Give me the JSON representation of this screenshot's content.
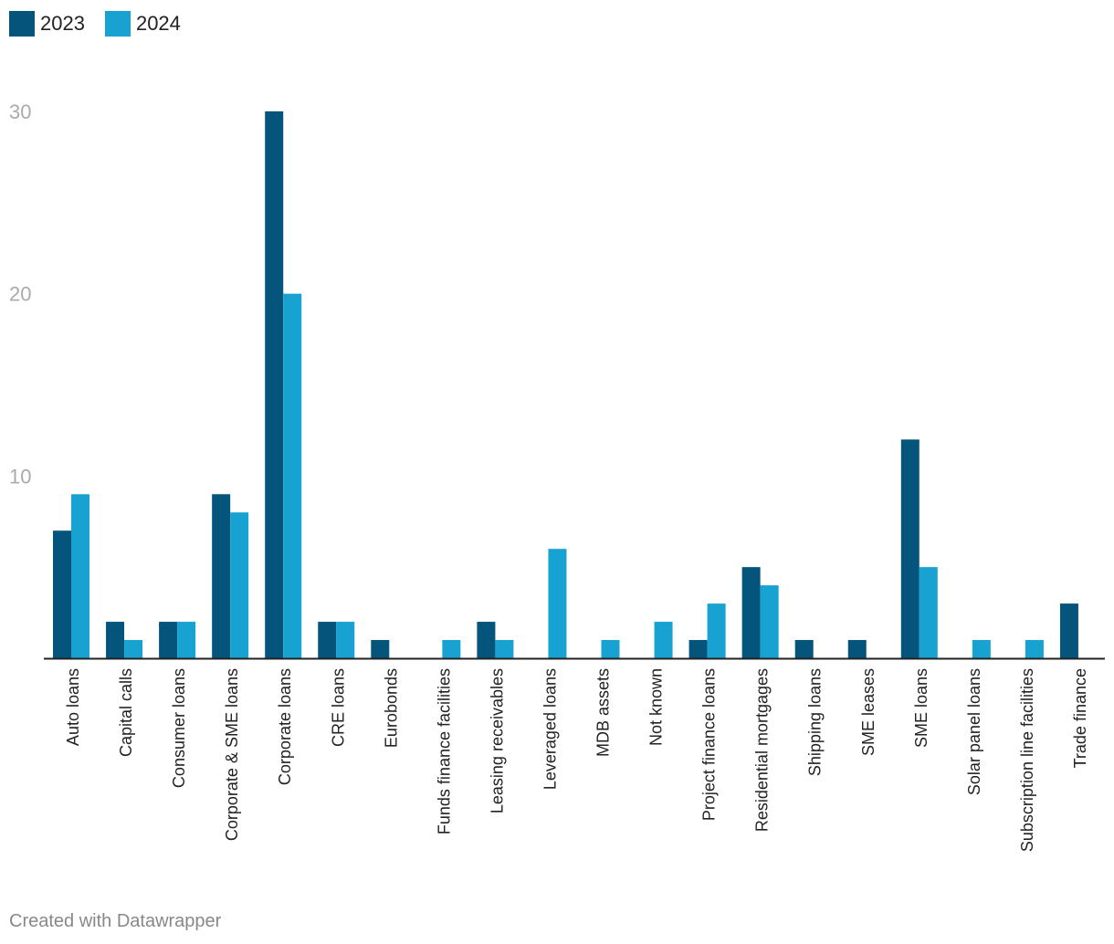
{
  "legend": [
    {
      "label": "2023",
      "color": "#04547c"
    },
    {
      "label": "2024",
      "color": "#18a2d1"
    }
  ],
  "footer": "Created with Datawrapper",
  "chart_data": {
    "type": "bar",
    "categories": [
      "Auto loans",
      "Capital calls",
      "Consumer loans",
      "Corporate & SME loans",
      "Corporate loans",
      "CRE loans",
      "Eurobonds",
      "Funds finance facilities",
      "Leasing receivables",
      "Leveraged loans",
      "MDB assets",
      "Not known",
      "Project finance loans",
      "Residential mortgages",
      "Shipping loans",
      "SME leases",
      "SME loans",
      "Solar panel loans",
      "Subscription line facilities",
      "Trade finance"
    ],
    "series": [
      {
        "name": "2023",
        "color": "#04547c",
        "values": [
          7,
          2,
          2,
          9,
          30,
          2,
          1,
          0,
          2,
          0,
          0,
          0,
          1,
          5,
          1,
          1,
          12,
          0,
          0,
          3
        ]
      },
      {
        "name": "2024",
        "color": "#18a2d1",
        "values": [
          9,
          1,
          2,
          8,
          20,
          2,
          0,
          1,
          1,
          6,
          1,
          2,
          3,
          4,
          0,
          0,
          5,
          1,
          1,
          0
        ]
      }
    ],
    "y_ticks": [
      10,
      20,
      30
    ],
    "ylim": [
      0,
      30
    ],
    "grid": false,
    "legend_position": "top-left",
    "title": "",
    "xlabel": "",
    "ylabel": ""
  }
}
